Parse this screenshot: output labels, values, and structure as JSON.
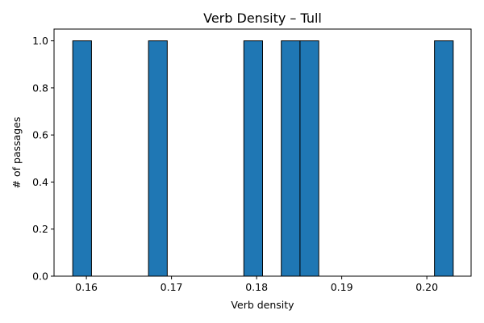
{
  "chart_data": {
    "type": "bar",
    "subtype": "histogram",
    "title": "Verb Density – Tull",
    "xlabel": "Verb density",
    "ylabel": "# of passages",
    "xlim": [
      0.1562,
      0.2052
    ],
    "ylim": [
      0.0,
      1.05
    ],
    "xticks": [
      0.16,
      0.17,
      0.18,
      0.19,
      0.2
    ],
    "xtick_labels": [
      "0.16",
      "0.17",
      "0.18",
      "0.19",
      "0.20"
    ],
    "yticks": [
      0.0,
      0.2,
      0.4,
      0.6,
      0.8,
      1.0
    ],
    "ytick_labels": [
      "0.0",
      "0.2",
      "0.4",
      "0.6",
      "0.8",
      "1.0"
    ],
    "bar_color": "#1f77b4",
    "edge_color": "#000000",
    "grid": false,
    "bins": [
      {
        "start": 0.1584,
        "end": 0.1606,
        "count": 1
      },
      {
        "start": 0.1673,
        "end": 0.1695,
        "count": 1
      },
      {
        "start": 0.1785,
        "end": 0.1807,
        "count": 1
      },
      {
        "start": 0.1829,
        "end": 0.1851,
        "count": 1
      },
      {
        "start": 0.1851,
        "end": 0.1873,
        "count": 1
      },
      {
        "start": 0.2009,
        "end": 0.2031,
        "count": 1
      }
    ]
  }
}
